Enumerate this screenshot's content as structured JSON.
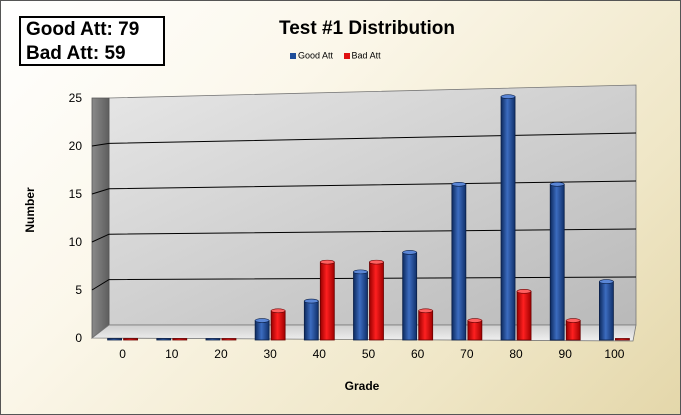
{
  "summary": {
    "good_line": "Good Att: 79",
    "bad_line": "Bad Att: 59"
  },
  "chart_data": {
    "type": "bar",
    "title": "Test #1 Distribution",
    "xlabel": "Grade",
    "ylabel": "Number",
    "categories": [
      "0",
      "10",
      "20",
      "30",
      "40",
      "50",
      "60",
      "70",
      "80",
      "90",
      "100"
    ],
    "series": [
      {
        "name": "Good Att",
        "color": "#1f4e9a",
        "values": [
          0,
          0,
          0,
          2,
          4,
          7,
          9,
          16,
          25,
          16,
          6
        ]
      },
      {
        "name": "Bad Att",
        "color": "#e01010",
        "values": [
          0,
          0,
          0,
          3,
          8,
          8,
          3,
          2,
          5,
          2,
          0
        ]
      }
    ],
    "ylim": [
      0,
      25
    ],
    "yticks": [
      "0",
      "5",
      "10",
      "15",
      "20",
      "25"
    ],
    "grid": true,
    "legend_position": "top-center"
  }
}
